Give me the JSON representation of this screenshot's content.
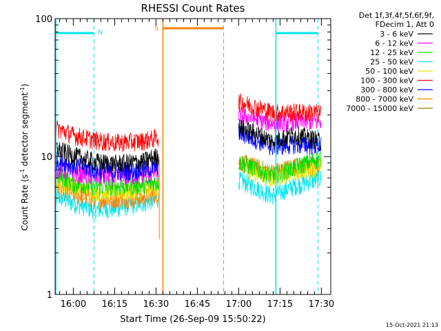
{
  "chart_data": {
    "type": "line",
    "title": "RHESSI Count Rates",
    "xlabel": "Start Time (26-Sep-09 15:50:22)",
    "ylabel_main": "Count Rate (s",
    "ylabel_sup": "-1",
    "ylabel_rest": " detector segment",
    "ylabel_sup2": "-1",
    "ylabel_close": ")",
    "yscale": "log",
    "ylim": [
      1,
      100
    ],
    "yticks": [
      "1",
      "10",
      "100"
    ],
    "xlim_minutes": [
      -6.6,
      93.4
    ],
    "x_ticks": [
      {
        "label": "16:00",
        "min": 0
      },
      {
        "label": "16:15",
        "min": 15
      },
      {
        "label": "16:30",
        "min": 30
      },
      {
        "label": "16:45",
        "min": 45
      },
      {
        "label": "17:00",
        "min": 60
      },
      {
        "label": "17:15",
        "min": 75
      },
      {
        "label": "17:30",
        "min": 90
      }
    ],
    "legend_header": [
      "Det 1f,3f,4f,5f,6f,9f,",
      "FDecim 1, Att 0"
    ],
    "series": [
      {
        "name": "3 - 6 keV",
        "color": "#000000",
        "values": [
          [
            -6.6,
            11.5
          ],
          [
            0,
            10.2
          ],
          [
            8,
            9.2
          ],
          [
            15,
            8.9
          ],
          [
            25,
            9.2
          ],
          [
            31,
            10.2
          ],
          [
            60,
            16.5
          ],
          [
            72,
            13
          ],
          [
            80,
            14.5
          ],
          [
            90,
            13
          ]
        ]
      },
      {
        "name": "6 - 12 keV",
        "color": "#ff00ff",
        "values": [
          [
            -6.6,
            8.2
          ],
          [
            0,
            7.6
          ],
          [
            8,
            7.2
          ],
          [
            15,
            7.1
          ],
          [
            25,
            7.3
          ],
          [
            31,
            7.8
          ],
          [
            60,
            20
          ],
          [
            72,
            17.5
          ],
          [
            80,
            18
          ],
          [
            90,
            18
          ]
        ]
      },
      {
        "name": "12 - 25 keV",
        "color": "#00dd00",
        "values": [
          [
            -6.6,
            7.5
          ],
          [
            0,
            6.4
          ],
          [
            8,
            6.1
          ],
          [
            15,
            6.1
          ],
          [
            25,
            6.2
          ],
          [
            31,
            6.6
          ],
          [
            60,
            9.2
          ],
          [
            72,
            7.3
          ],
          [
            80,
            8.3
          ],
          [
            90,
            9.8
          ]
        ]
      },
      {
        "name": "25 - 50 keV",
        "color": "#00e5ee",
        "values": [
          [
            -6.6,
            5.2
          ],
          [
            0,
            4.6
          ],
          [
            8,
            4.1
          ],
          [
            15,
            4.2
          ],
          [
            25,
            4.6
          ],
          [
            31,
            5
          ],
          [
            60,
            6.8
          ],
          [
            72,
            5.2
          ],
          [
            80,
            6.1
          ],
          [
            90,
            7
          ]
        ]
      },
      {
        "name": "50 - 100 keV",
        "color": "#e5e500",
        "values": [
          [
            -6.6,
            6.6
          ],
          [
            0,
            6.1
          ],
          [
            8,
            5.6
          ],
          [
            15,
            5.5
          ],
          [
            25,
            5.7
          ],
          [
            31,
            6.1
          ],
          [
            60,
            8.4
          ],
          [
            72,
            7
          ],
          [
            80,
            7.7
          ],
          [
            90,
            8.5
          ]
        ]
      },
      {
        "name": "100 - 300 keV",
        "color": "#ff0000",
        "values": [
          [
            -6.6,
            16.2
          ],
          [
            0,
            14.3
          ],
          [
            8,
            13.2
          ],
          [
            15,
            12.6
          ],
          [
            25,
            13
          ],
          [
            31,
            13.8
          ],
          [
            60,
            25
          ],
          [
            72,
            21
          ],
          [
            80,
            21
          ],
          [
            90,
            21
          ]
        ]
      },
      {
        "name": "300 - 800 keV",
        "color": "#0000ff",
        "values": [
          [
            -6.6,
            9.5
          ],
          [
            0,
            8.7
          ],
          [
            8,
            8
          ],
          [
            15,
            7.8
          ],
          [
            25,
            8
          ],
          [
            31,
            8.5
          ],
          [
            60,
            15
          ],
          [
            72,
            11.8
          ],
          [
            80,
            12.3
          ],
          [
            90,
            12
          ]
        ]
      },
      {
        "name": "800 - 7000 keV",
        "color": "#ff8000",
        "values": [
          [
            -6.6,
            6.1
          ],
          [
            0,
            5.4
          ],
          [
            8,
            4.9
          ],
          [
            15,
            4.9
          ],
          [
            25,
            5
          ],
          [
            31,
            5.4
          ],
          [
            60,
            9.2
          ],
          [
            72,
            7.7
          ],
          [
            80,
            8.5
          ],
          [
            90,
            8.5
          ]
        ]
      },
      {
        "name": "7000 - 15000 keV",
        "color": "#808000",
        "values": []
      }
    ],
    "gap_minutes": [
      31.3,
      59.1
    ],
    "markers": {
      "night_start_min": -6.6,
      "night_end_min": 7.5,
      "night2_start_min": 73.5,
      "night2_end_min": 88.8,
      "saa_start_min": 32.5,
      "saa_end_min": 54.5,
      "night_color": "#00e5ee",
      "saa_color": "#ff8000",
      "night_label": "N",
      "saa_label": "S"
    }
  },
  "footer": {
    "date": "15-Oct-2021 21:13"
  }
}
